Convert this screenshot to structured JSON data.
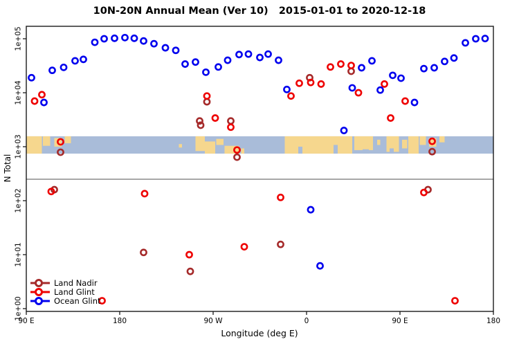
{
  "title": "10N-20N Annual Mean (Ver 10)   2015-01-01 to 2020-12-18",
  "chart_data": {
    "type": "scatter",
    "title": "10N-20N Annual Mean (Ver 10)   2015-01-01 to 2020-12-18",
    "xlabel": "Longitude (deg E)",
    "ylabel": "N Total",
    "x_range": [
      90,
      540
    ],
    "y_scale": "log10",
    "y_range": [
      1,
      100000
    ],
    "x_ticks": [
      {
        "lon": 90,
        "label": "90 E"
      },
      {
        "lon": 180,
        "label": "180"
      },
      {
        "lon": 270,
        "label": "90 W"
      },
      {
        "lon": 360,
        "label": "0"
      },
      {
        "lon": 450,
        "label": "90 E"
      },
      {
        "lon": 540,
        "label": "180"
      }
    ],
    "y_ticks": [
      {
        "value": 1,
        "label": "1e+00"
      },
      {
        "value": 10,
        "label": "1e+01"
      },
      {
        "value": 100,
        "label": "1e+02"
      },
      {
        "value": 1000,
        "label": "1e+03"
      },
      {
        "value": 10000,
        "label": "1e+04"
      },
      {
        "value": 100000,
        "label": "1e+05"
      }
    ],
    "reference_line": {
      "value": 250,
      "color": "#8a8a8a"
    },
    "map_band": {
      "value_top": 1560,
      "value_bottom": 745,
      "ocean_color": "#a9bcd9",
      "land_color": "#f6d78e",
      "land_patches": [
        [
          90,
          105,
          0,
          1
        ],
        [
          106,
          113,
          0,
          0.55
        ],
        [
          117,
          124,
          0.1,
          0.6
        ],
        [
          127,
          133,
          0,
          0.4
        ],
        [
          237,
          240,
          0.45,
          0.65
        ],
        [
          253,
          262,
          0,
          0.85
        ],
        [
          262,
          272,
          0.3,
          1
        ],
        [
          273,
          280,
          0.15,
          0.5
        ],
        [
          281,
          295,
          0.55,
          1
        ],
        [
          297,
          300,
          0.7,
          1
        ],
        [
          339,
          404,
          0,
          1
        ],
        [
          406,
          424,
          0,
          0.8
        ],
        [
          428,
          431,
          0.2,
          0.5
        ],
        [
          437,
          449,
          0,
          0.9
        ],
        [
          452,
          457,
          0.2,
          0.7
        ],
        [
          458,
          468,
          0,
          1
        ],
        [
          469,
          475,
          0,
          0.5
        ],
        [
          478,
          485,
          0.1,
          0.6
        ],
        [
          488,
          493,
          0,
          0.35
        ]
      ],
      "ocean_notches": [
        [
          352,
          356,
          0.6,
          1
        ],
        [
          386,
          390,
          0.5,
          1
        ],
        [
          414,
          420,
          0.75,
          1
        ],
        [
          440,
          444,
          0.7,
          1
        ]
      ]
    },
    "series": [
      {
        "name": "Land Nadir",
        "color": "#a52a2a",
        "points": [
          [
            123,
            790
          ],
          [
            117,
            160
          ],
          [
            203,
            11
          ],
          [
            248,
            4.9
          ],
          [
            257,
            3000
          ],
          [
            258,
            2500
          ],
          [
            264,
            6800
          ],
          [
            287,
            3000
          ],
          [
            293,
            640
          ],
          [
            335,
            15.5
          ],
          [
            363,
            19000
          ],
          [
            403,
            25000
          ],
          [
            477,
            160
          ],
          [
            481,
            810
          ]
        ]
      },
      {
        "name": "Land Glint",
        "color": "#ee0000",
        "points": [
          [
            98,
            7000
          ],
          [
            105,
            9200
          ],
          [
            114,
            148
          ],
          [
            123,
            1230
          ],
          [
            163,
            1.4
          ],
          [
            204,
            135
          ],
          [
            247,
            10
          ],
          [
            264,
            8700
          ],
          [
            272,
            3400
          ],
          [
            287,
            2300
          ],
          [
            293,
            870
          ],
          [
            300,
            14
          ],
          [
            335,
            115
          ],
          [
            345,
            8700
          ],
          [
            353,
            15000
          ],
          [
            364,
            15500
          ],
          [
            374,
            14500
          ],
          [
            383,
            30000
          ],
          [
            393,
            34000
          ],
          [
            403,
            32000
          ],
          [
            410,
            10000
          ],
          [
            435,
            14500
          ],
          [
            441,
            3400
          ],
          [
            455,
            7000
          ],
          [
            473,
            142
          ],
          [
            481,
            1260
          ],
          [
            503,
            1.4
          ]
        ]
      },
      {
        "name": "Ocean Glint",
        "color": "#0000ee",
        "points": [
          [
            95,
            19000
          ],
          [
            107,
            6600
          ],
          [
            115,
            26000
          ],
          [
            126,
            29500
          ],
          [
            137,
            39000
          ],
          [
            145,
            41500
          ],
          [
            156,
            86000
          ],
          [
            165,
            100000
          ],
          [
            175,
            102000
          ],
          [
            185,
            105000
          ],
          [
            194,
            102000
          ],
          [
            203,
            91000
          ],
          [
            213,
            81000
          ],
          [
            224,
            68000
          ],
          [
            234,
            61000
          ],
          [
            243,
            34000
          ],
          [
            253,
            37000
          ],
          [
            263,
            24000
          ],
          [
            275,
            30000
          ],
          [
            284,
            40000
          ],
          [
            295,
            51000
          ],
          [
            304,
            52000
          ],
          [
            315,
            45000
          ],
          [
            323,
            52000
          ],
          [
            333,
            40000
          ],
          [
            341,
            11500
          ],
          [
            364,
            68
          ],
          [
            373,
            6.2
          ],
          [
            396,
            2000
          ],
          [
            404,
            12300
          ],
          [
            413,
            29000
          ],
          [
            423,
            39000
          ],
          [
            431,
            11200
          ],
          [
            443,
            21000
          ],
          [
            451,
            18600
          ],
          [
            464,
            6600
          ],
          [
            473,
            28000
          ],
          [
            483,
            29000
          ],
          [
            493,
            38000
          ],
          [
            502,
            44000
          ],
          [
            513,
            84000
          ],
          [
            523,
            100000
          ],
          [
            532,
            101000
          ]
        ]
      }
    ],
    "legend": {
      "position": "bottom-left",
      "labels": [
        "Land Nadir",
        "Land Glint",
        "Ocean Glint"
      ]
    }
  }
}
